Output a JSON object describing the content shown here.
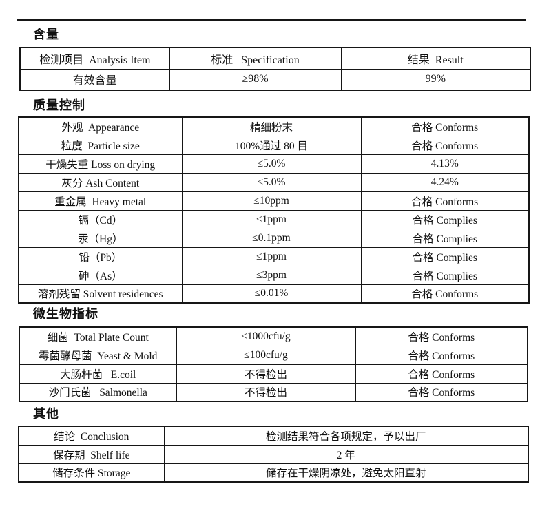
{
  "colors": {
    "background": "#ffffff",
    "text": "#111111",
    "border": "#161616"
  },
  "sections": [
    {
      "heading": "含量",
      "table": {
        "rows": [
          [
            "检测项目  Analysis Item",
            "标准   Specification",
            "结果  Result"
          ],
          [
            "有效含量",
            "≥98%",
            "99%"
          ]
        ]
      }
    },
    {
      "heading": "质量控制",
      "table": {
        "rows": [
          [
            "外观  Appearance",
            "精细粉末",
            "合格 Conforms"
          ],
          [
            "粒度  Particle size",
            "100%通过 80 目",
            "合格 Conforms"
          ],
          [
            "干燥失重 Loss on drying",
            "≤5.0%",
            "4.13%"
          ],
          [
            "灰分 Ash Content",
            "≤5.0%",
            "4.24%"
          ],
          [
            "重金属  Heavy metal",
            "≤10ppm",
            "合格 Conforms"
          ],
          [
            "镉（Cd）",
            "≤1ppm",
            "合格 Complies"
          ],
          [
            "汞（Hg）",
            "≤0.1ppm",
            "合格 Complies"
          ],
          [
            "铅（Pb）",
            "≤1ppm",
            "合格 Complies"
          ],
          [
            "砷（As）",
            "≤3ppm",
            "合格 Complies"
          ],
          [
            "溶剂残留 Solvent residences",
            "≤0.01%",
            "合格 Conforms"
          ]
        ]
      }
    },
    {
      "heading": "微生物指标",
      "table": {
        "rows": [
          [
            "细菌  Total Plate Count",
            "≤1000cfu/g",
            "合格 Conforms"
          ],
          [
            "霉菌酵母菌  Yeast & Mold",
            "≤100cfu/g",
            "合格 Conforms"
          ],
          [
            "大肠杆菌   E.coil",
            "不得检出",
            "合格 Conforms"
          ],
          [
            "沙门氏菌   Salmonella",
            "不得检出",
            "合格 Conforms"
          ]
        ]
      }
    },
    {
      "heading": "其他",
      "table": {
        "rows": [
          [
            "结论  Conclusion",
            "检测结果符合各项规定，予以出厂"
          ],
          [
            "保存期  Shelf life",
            "2 年"
          ],
          [
            "储存条件 Storage",
            "储存在干燥阴凉处，避免太阳直射"
          ]
        ]
      }
    }
  ]
}
